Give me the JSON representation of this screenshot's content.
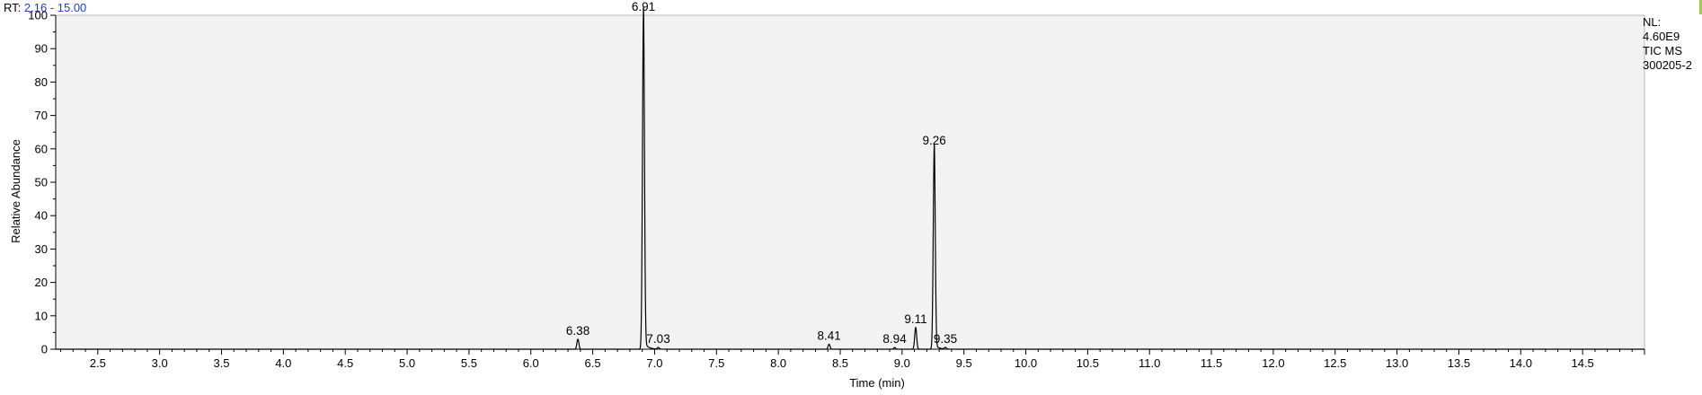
{
  "header": {
    "rt_label": "RT:",
    "rt_range": "2.16 - 15.00"
  },
  "info": {
    "nl_label": "NL:",
    "nl_value": "4.60E9",
    "scan": "TIC  MS",
    "file": "300205-2"
  },
  "colors": {
    "trace": "#000000",
    "plot_bg": "#f2f2f2",
    "header_range": "#1f3fbf",
    "accent": "#9ccf5a"
  },
  "chart_data": {
    "type": "line",
    "title": "",
    "xlabel": "Time (min)",
    "ylabel": "Relative Abundance",
    "xlim": [
      2.16,
      15.0
    ],
    "ylim": [
      0,
      100
    ],
    "grid": false,
    "x_ticks": [
      2.5,
      3.0,
      3.5,
      4.0,
      4.5,
      5.0,
      5.5,
      6.0,
      6.5,
      7.0,
      7.5,
      8.0,
      8.5,
      9.0,
      9.5,
      10.0,
      10.5,
      11.0,
      11.5,
      12.0,
      12.5,
      13.0,
      13.5,
      14.0,
      14.5
    ],
    "x_tick_labels": [
      "2.5",
      "3.0",
      "3.5",
      "4.0",
      "4.5",
      "5.0",
      "5.5",
      "6.0",
      "6.5",
      "7.0",
      "7.5",
      "8.0",
      "8.5",
      "9.0",
      "9.5",
      "10.0",
      "10.5",
      "11.0",
      "11.5",
      "12.0",
      "12.5",
      "13.0",
      "13.5",
      "14.0",
      "14.5"
    ],
    "y_ticks": [
      0,
      10,
      20,
      30,
      40,
      50,
      60,
      70,
      80,
      90,
      100
    ],
    "y_tick_labels": [
      "0",
      "10",
      "20",
      "30",
      "40",
      "50",
      "60",
      "70",
      "80",
      "90",
      "100"
    ],
    "peaks": [
      {
        "label": "6.38",
        "rt": 6.38,
        "height": 3
      },
      {
        "label": "6.91",
        "rt": 6.91,
        "height": 100
      },
      {
        "label": "7.03",
        "rt": 7.03,
        "height": 0.5
      },
      {
        "label": "8.41",
        "rt": 8.41,
        "height": 1.5
      },
      {
        "label": "8.94",
        "rt": 8.94,
        "height": 0.5
      },
      {
        "label": "9.11",
        "rt": 9.11,
        "height": 6.5
      },
      {
        "label": "9.26",
        "rt": 9.26,
        "height": 60
      },
      {
        "label": "9.35",
        "rt": 9.35,
        "height": 0.5
      }
    ]
  }
}
